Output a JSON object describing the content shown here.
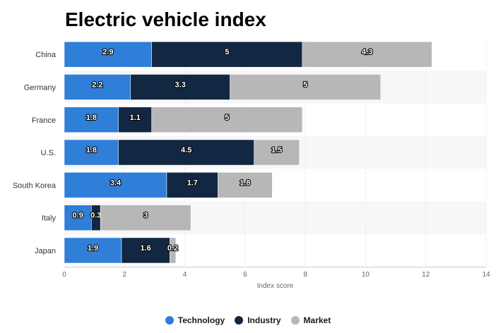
{
  "chart_data": {
    "type": "bar",
    "orientation": "horizontal",
    "stacked": true,
    "title": "Electric vehicle index",
    "xlabel": "Index score",
    "ylabel": "",
    "xlim": [
      0,
      14
    ],
    "x_ticks": [
      0,
      2,
      4,
      6,
      8,
      10,
      12,
      14
    ],
    "categories": [
      "China",
      "Germany",
      "France",
      "U.S.",
      "South Korea",
      "Italy",
      "Japan"
    ],
    "series": [
      {
        "name": "Technology",
        "color": "#2f7ed8",
        "values": [
          2.9,
          2.2,
          1.8,
          1.8,
          3.4,
          0.9,
          1.9
        ]
      },
      {
        "name": "Industry",
        "color": "#122741",
        "values": [
          5,
          3.3,
          1.1,
          4.5,
          1.7,
          0.3,
          1.6
        ]
      },
      {
        "name": "Market",
        "color": "#b7b7b7",
        "values": [
          4.3,
          5,
          5,
          1.5,
          1.8,
          3,
          0.2
        ]
      }
    ],
    "legend_position": "bottom",
    "grid": true,
    "data_labels": true
  }
}
